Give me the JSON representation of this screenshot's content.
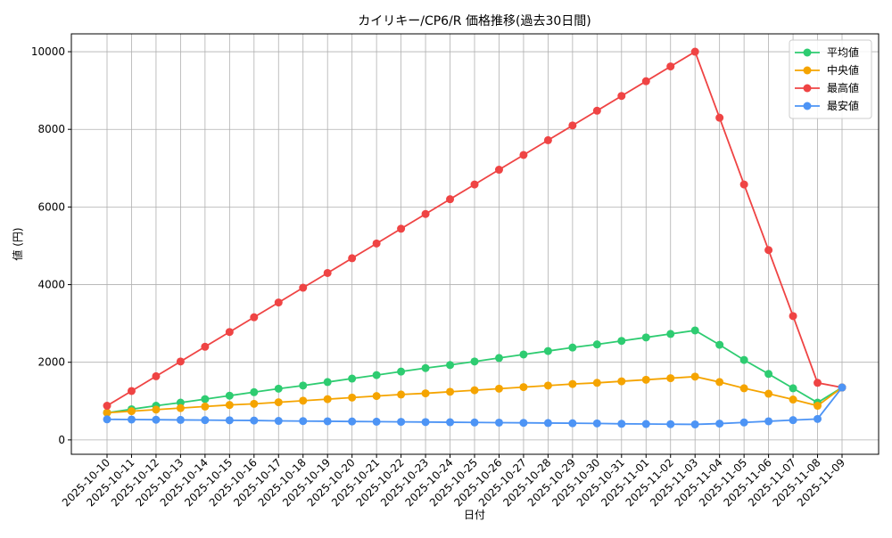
{
  "chart_data": {
    "type": "line",
    "title": "カイリキー/CP6/R 価格推移(過去30日間)",
    "xlabel": "日付",
    "ylabel": "値 (円)",
    "categories": [
      "2025-10-10",
      "2025-10-11",
      "2025-10-12",
      "2025-10-13",
      "2025-10-14",
      "2025-10-15",
      "2025-10-16",
      "2025-10-17",
      "2025-10-18",
      "2025-10-19",
      "2025-10-20",
      "2025-10-21",
      "2025-10-22",
      "2025-10-23",
      "2025-10-24",
      "2025-10-25",
      "2025-10-26",
      "2025-10-27",
      "2025-10-28",
      "2025-10-29",
      "2025-10-30",
      "2025-10-31",
      "2025-11-01",
      "2025-11-02",
      "2025-11-03",
      "2025-11-04",
      "2025-11-05",
      "2025-11-06",
      "2025-11-07",
      "2025-11-08",
      "2025-11-09"
    ],
    "series": [
      {
        "name": "平均値",
        "color": "#2ecc71",
        "values": [
          700,
          790,
          880,
          960,
          1050,
          1140,
          1230,
          1320,
          1400,
          1490,
          1580,
          1670,
          1760,
          1850,
          1930,
          2020,
          2110,
          2200,
          2290,
          2380,
          2460,
          2550,
          2640,
          2730,
          2820,
          2450,
          2060,
          1700,
          1330,
          960,
          1350
        ]
      },
      {
        "name": "中央値",
        "color": "#f5a400",
        "values": [
          700,
          740,
          780,
          820,
          860,
          900,
          930,
          970,
          1010,
          1050,
          1090,
          1130,
          1170,
          1200,
          1240,
          1280,
          1320,
          1360,
          1400,
          1440,
          1470,
          1510,
          1550,
          1590,
          1630,
          1490,
          1330,
          1190,
          1040,
          880,
          1350
        ]
      },
      {
        "name": "最高値",
        "color": "#ef4444",
        "values": [
          880,
          1260,
          1640,
          2020,
          2400,
          2780,
          3160,
          3540,
          3920,
          4300,
          4680,
          5060,
          5440,
          5820,
          6200,
          6580,
          6960,
          7340,
          7720,
          8100,
          8480,
          8860,
          9240,
          9620,
          10000,
          8300,
          6580,
          4890,
          3190,
          1470,
          1350
        ]
      },
      {
        "name": "最安値",
        "color": "#4d94f5",
        "values": [
          530,
          525,
          520,
          515,
          510,
          505,
          500,
          490,
          485,
          480,
          475,
          470,
          465,
          460,
          455,
          450,
          445,
          440,
          435,
          430,
          425,
          415,
          410,
          405,
          400,
          420,
          450,
          480,
          510,
          540,
          1350
        ]
      }
    ],
    "ylim": [
      -370,
      10460
    ],
    "yticks": [
      0,
      2000,
      4000,
      6000,
      8000,
      10000
    ],
    "grid": true,
    "legend": "upper right"
  }
}
